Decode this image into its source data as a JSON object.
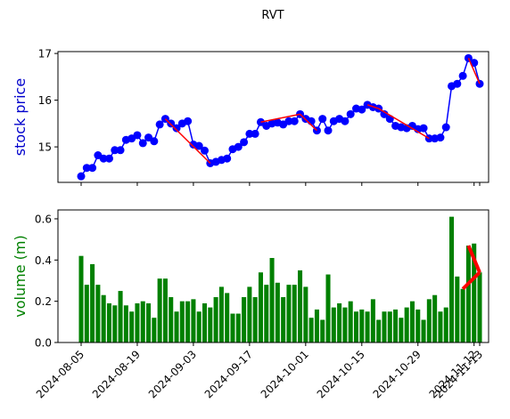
{
  "title": "RVT",
  "chart_data": [
    {
      "type": "line",
      "ylabel": "stock price",
      "ylabel_color": "#0000cc",
      "color": "#0000ff",
      "trend_color": "#ff0000",
      "x": [
        "2024-08-05",
        "2024-08-06",
        "2024-08-07",
        "2024-08-08",
        "2024-08-09",
        "2024-08-12",
        "2024-08-13",
        "2024-08-14",
        "2024-08-15",
        "2024-08-16",
        "2024-08-19",
        "2024-08-20",
        "2024-08-21",
        "2024-08-22",
        "2024-08-23",
        "2024-08-26",
        "2024-08-27",
        "2024-08-28",
        "2024-08-29",
        "2024-08-30",
        "2024-09-03",
        "2024-09-04",
        "2024-09-05",
        "2024-09-06",
        "2024-09-09",
        "2024-09-10",
        "2024-09-11",
        "2024-09-12",
        "2024-09-13",
        "2024-09-16",
        "2024-09-17",
        "2024-09-18",
        "2024-09-19",
        "2024-09-20",
        "2024-09-23",
        "2024-09-24",
        "2024-09-25",
        "2024-09-26",
        "2024-09-27",
        "2024-09-30",
        "2024-10-01",
        "2024-10-02",
        "2024-10-03",
        "2024-10-04",
        "2024-10-07",
        "2024-10-08",
        "2024-10-09",
        "2024-10-10",
        "2024-10-11",
        "2024-10-14",
        "2024-10-15",
        "2024-10-16",
        "2024-10-17",
        "2024-10-18",
        "2024-10-21",
        "2024-10-22",
        "2024-10-23",
        "2024-10-24",
        "2024-10-25",
        "2024-10-28",
        "2024-10-29",
        "2024-10-30",
        "2024-10-31",
        "2024-11-01",
        "2024-11-04",
        "2024-11-05",
        "2024-11-06",
        "2024-11-07",
        "2024-11-08",
        "2024-11-11",
        "2024-11-12",
        "2024-11-13"
      ],
      "values": [
        14.37,
        14.55,
        14.55,
        14.82,
        14.75,
        14.75,
        14.93,
        14.93,
        15.15,
        15.18,
        15.25,
        15.08,
        15.2,
        15.12,
        15.48,
        15.6,
        15.5,
        15.4,
        15.5,
        15.55,
        15.05,
        15.02,
        14.92,
        14.65,
        14.68,
        14.72,
        14.75,
        14.95,
        15.0,
        15.1,
        15.28,
        15.28,
        15.53,
        15.45,
        15.5,
        15.52,
        15.48,
        15.55,
        15.55,
        15.7,
        15.6,
        15.55,
        15.35,
        15.6,
        15.35,
        15.55,
        15.6,
        15.55,
        15.7,
        15.82,
        15.8,
        15.9,
        15.85,
        15.82,
        15.7,
        15.6,
        15.45,
        15.42,
        15.4,
        15.45,
        15.38,
        15.4,
        15.18,
        15.18,
        15.2,
        15.42,
        16.3,
        16.35,
        16.52,
        16.9,
        16.8,
        16.35
      ],
      "trend_lines": [
        {
          "x": [
            "2024-08-26",
            "2024-09-06"
          ],
          "values": [
            15.6,
            14.65
          ]
        },
        {
          "x": [
            "2024-09-19",
            "2024-09-30"
          ],
          "values": [
            15.53,
            15.7
          ]
        },
        {
          "x": [
            "2024-09-30",
            "2024-10-03"
          ],
          "values": [
            15.7,
            15.35
          ]
        },
        {
          "x": [
            "2024-10-16",
            "2024-10-18"
          ],
          "values": [
            15.9,
            15.82
          ]
        },
        {
          "x": [
            "2024-10-18",
            "2024-10-31"
          ],
          "values": [
            15.82,
            15.18
          ]
        },
        {
          "x": [
            "2024-11-11",
            "2024-11-13"
          ],
          "values": [
            16.9,
            16.35
          ]
        }
      ],
      "ylim": [
        14.24,
        17.04
      ],
      "yticks": [
        15,
        16,
        17
      ],
      "xticks": [
        "2024-08-05",
        "2024-08-19",
        "2024-09-03",
        "2024-09-17",
        "2024-10-01",
        "2024-10-15",
        "2024-10-29",
        "2024-11-12",
        "2024-11-13"
      ]
    },
    {
      "type": "bar",
      "ylabel": "volume (m)",
      "ylabel_color": "#008000",
      "color": "#008000",
      "trend_color": "#ff0000",
      "x": [
        "2024-08-05",
        "2024-08-06",
        "2024-08-07",
        "2024-08-08",
        "2024-08-09",
        "2024-08-12",
        "2024-08-13",
        "2024-08-14",
        "2024-08-15",
        "2024-08-16",
        "2024-08-19",
        "2024-08-20",
        "2024-08-21",
        "2024-08-22",
        "2024-08-23",
        "2024-08-26",
        "2024-08-27",
        "2024-08-28",
        "2024-08-29",
        "2024-08-30",
        "2024-09-03",
        "2024-09-04",
        "2024-09-05",
        "2024-09-06",
        "2024-09-09",
        "2024-09-10",
        "2024-09-11",
        "2024-09-12",
        "2024-09-13",
        "2024-09-16",
        "2024-09-17",
        "2024-09-18",
        "2024-09-19",
        "2024-09-20",
        "2024-09-23",
        "2024-09-24",
        "2024-09-25",
        "2024-09-26",
        "2024-09-27",
        "2024-09-30",
        "2024-10-01",
        "2024-10-02",
        "2024-10-03",
        "2024-10-04",
        "2024-10-07",
        "2024-10-08",
        "2024-10-09",
        "2024-10-10",
        "2024-10-11",
        "2024-10-14",
        "2024-10-15",
        "2024-10-16",
        "2024-10-17",
        "2024-10-18",
        "2024-10-21",
        "2024-10-22",
        "2024-10-23",
        "2024-10-24",
        "2024-10-25",
        "2024-10-28",
        "2024-10-29",
        "2024-10-30",
        "2024-10-31",
        "2024-11-01",
        "2024-11-04",
        "2024-11-05",
        "2024-11-06",
        "2024-11-07",
        "2024-11-08",
        "2024-11-11",
        "2024-11-12",
        "2024-11-13"
      ],
      "values": [
        0.42,
        0.28,
        0.38,
        0.28,
        0.23,
        0.19,
        0.18,
        0.25,
        0.18,
        0.15,
        0.19,
        0.2,
        0.19,
        0.12,
        0.31,
        0.31,
        0.22,
        0.15,
        0.2,
        0.2,
        0.21,
        0.15,
        0.19,
        0.17,
        0.22,
        0.27,
        0.24,
        0.14,
        0.14,
        0.22,
        0.27,
        0.22,
        0.34,
        0.28,
        0.41,
        0.29,
        0.22,
        0.28,
        0.28,
        0.35,
        0.27,
        0.12,
        0.16,
        0.11,
        0.33,
        0.17,
        0.19,
        0.17,
        0.2,
        0.15,
        0.16,
        0.15,
        0.21,
        0.11,
        0.15,
        0.15,
        0.16,
        0.12,
        0.17,
        0.2,
        0.16,
        0.11,
        0.21,
        0.23,
        0.15,
        0.17,
        0.61,
        0.32,
        0.26,
        0.47,
        0.48,
        0.34
      ],
      "trend_lines": [
        {
          "x": [
            "2024-11-08",
            "2024-11-13"
          ],
          "values": [
            0.26,
            0.34
          ]
        },
        {
          "x": [
            "2024-11-11",
            "2024-11-13"
          ],
          "values": [
            0.47,
            0.34
          ]
        }
      ],
      "ylim": [
        0,
        0.643
      ],
      "yticks": [
        {
          "value": 0,
          "label": "0.0"
        },
        0.2,
        0.4,
        0.6
      ],
      "xticks": [
        "2024-08-05",
        "2024-08-19",
        "2024-09-03",
        "2024-09-17",
        "2024-10-01",
        "2024-10-15",
        "2024-10-29",
        "2024-11-12",
        "2024-11-13"
      ]
    }
  ]
}
